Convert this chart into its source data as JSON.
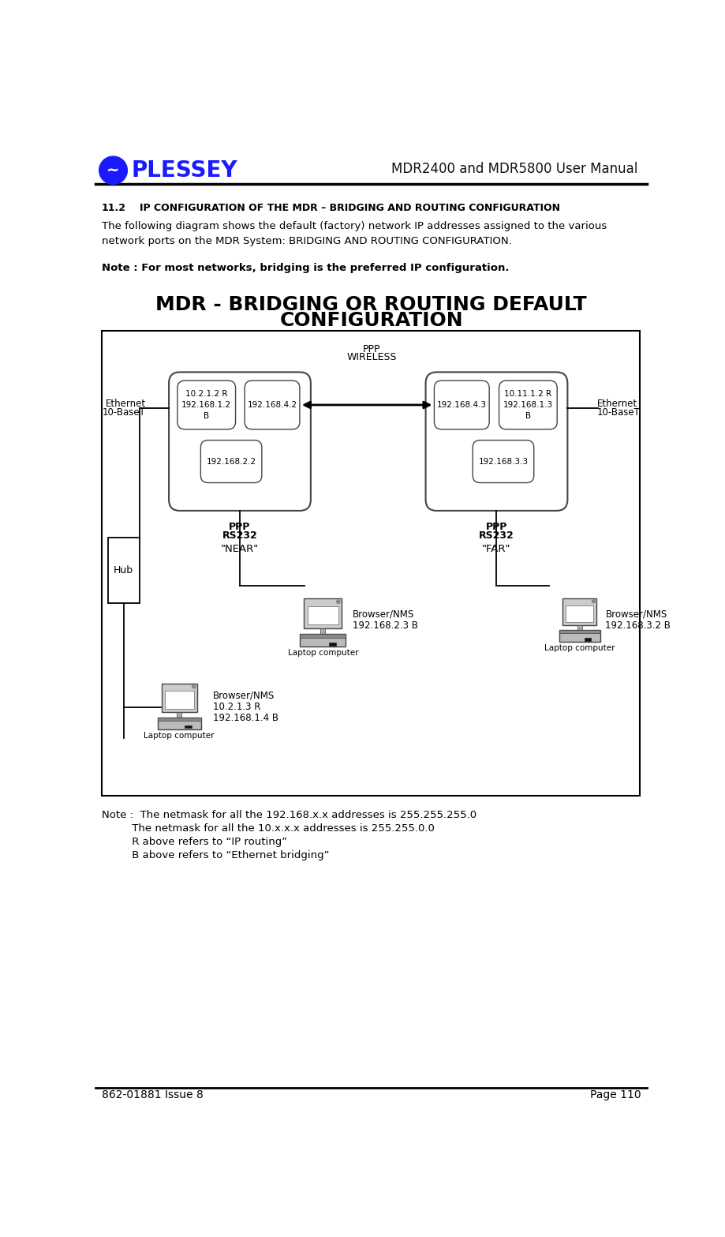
{
  "page_title": "MDR2400 and MDR5800 User Manual",
  "footer_left": "862-01881 Issue 8",
  "footer_right": "Page 110",
  "section_num": "11.2",
  "section_title": "IP CONFIGURATION OF THE MDR – BRIDGING AND ROUTING CONFIGURATION",
  "body_text1": "The following diagram shows the default (factory) network IP addresses assigned to the various\nnetwork ports on the MDR System: BRIDGING AND ROUTING CONFIGURATION.",
  "note_bold": "Note : For most networks, bridging is the preferred IP configuration.",
  "diagram_title_line1": "MDR - BRIDGING OR ROUTING DEFAULT",
  "diagram_title_line2": "CONFIGURATION",
  "note_line1": "Note :  The netmask for all the 192.168.x.x addresses is 255.255.255.0",
  "note_line2": "         The netmask for all the 10.x.x.x addresses is 255.255.0.0",
  "note_line3": "         R above refers to “IP routing”",
  "note_line4": "         B above refers to “Ethernet bridging”",
  "bg_color": "#ffffff",
  "plessey_blue": "#1a1aff"
}
